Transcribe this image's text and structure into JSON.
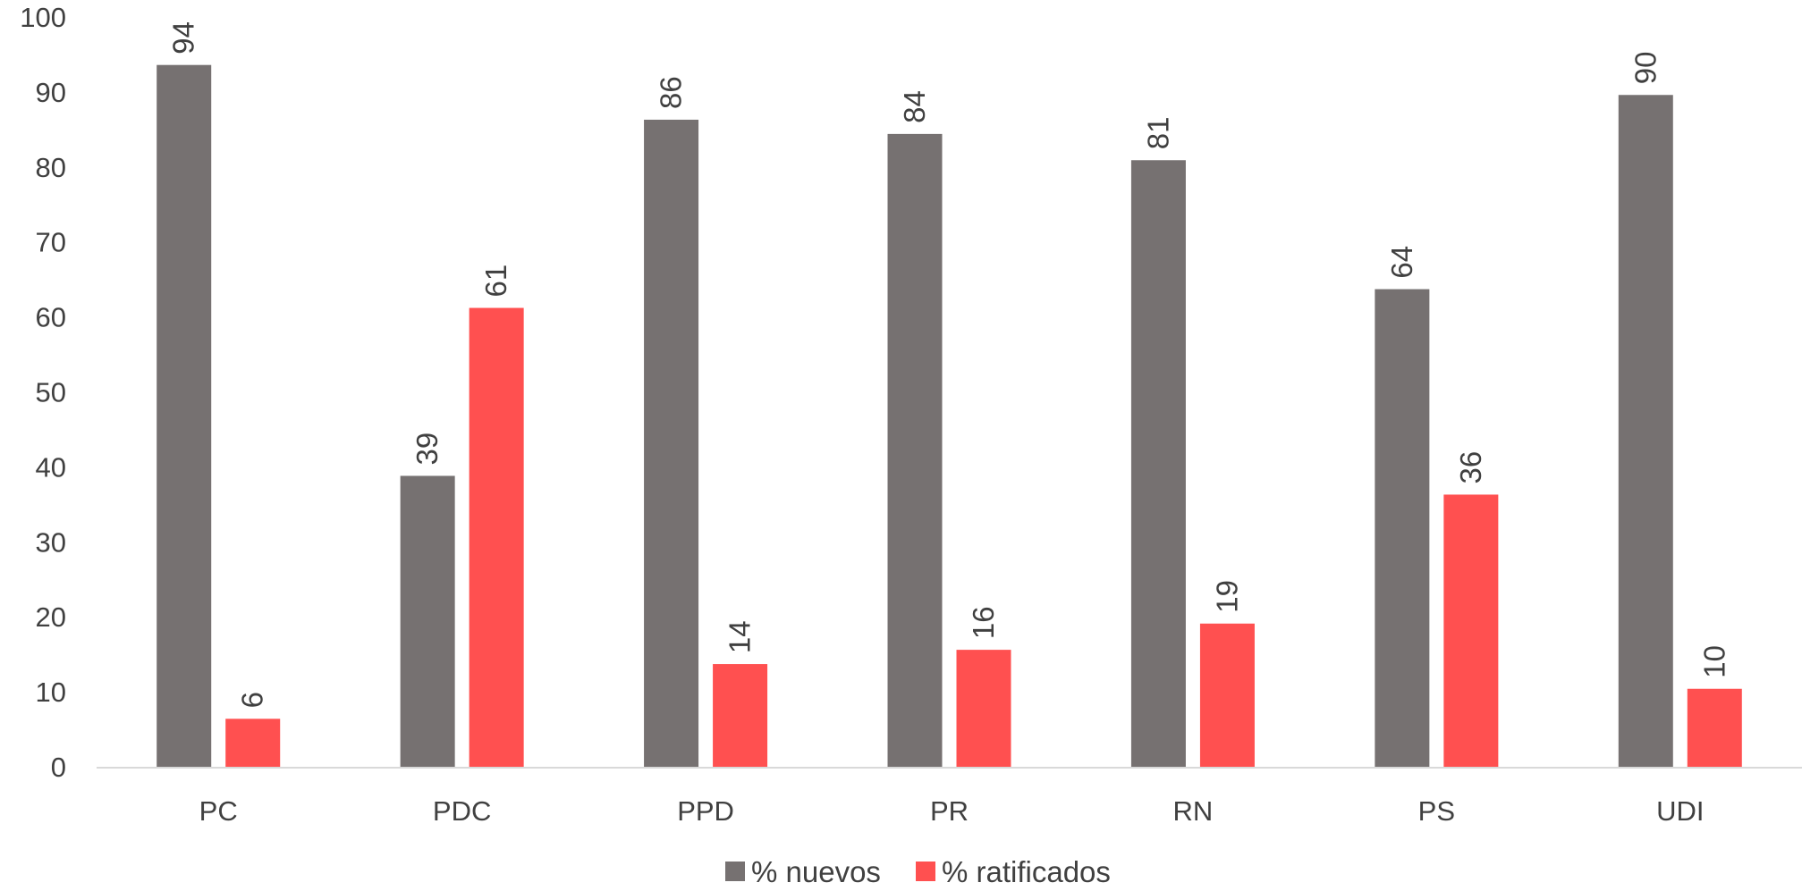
{
  "chart_data": {
    "type": "bar",
    "title": "",
    "xlabel": "",
    "ylabel": "",
    "categories": [
      "PC",
      "PDC",
      "PPD",
      "PR",
      "RN",
      "PS",
      "UDI"
    ],
    "series": [
      {
        "name": "% nuevos",
        "color": "#767171",
        "values": [
          93.6,
          38.8,
          86.3,
          84.4,
          80.9,
          63.7,
          89.6
        ],
        "labels": [
          "94",
          "39",
          "86",
          "84",
          "81",
          "64",
          "90"
        ]
      },
      {
        "name": "% ratificados",
        "color": "#ff5050",
        "values": [
          6.4,
          61.2,
          13.7,
          15.6,
          19.1,
          36.3,
          10.4
        ],
        "labels": [
          "6",
          "61",
          "14",
          "16",
          "19",
          "36",
          "10"
        ]
      }
    ],
    "ylim": [
      0,
      100
    ],
    "yticks": [
      0,
      10,
      20,
      30,
      40,
      50,
      60,
      70,
      80,
      90,
      100
    ],
    "ytick_labels": [
      "0",
      "10",
      "20",
      "30",
      "40",
      "50",
      "60",
      "70",
      "80",
      "90",
      "100"
    ],
    "data_labels_rotated": true,
    "grid": false,
    "legend_position": "bottom"
  }
}
